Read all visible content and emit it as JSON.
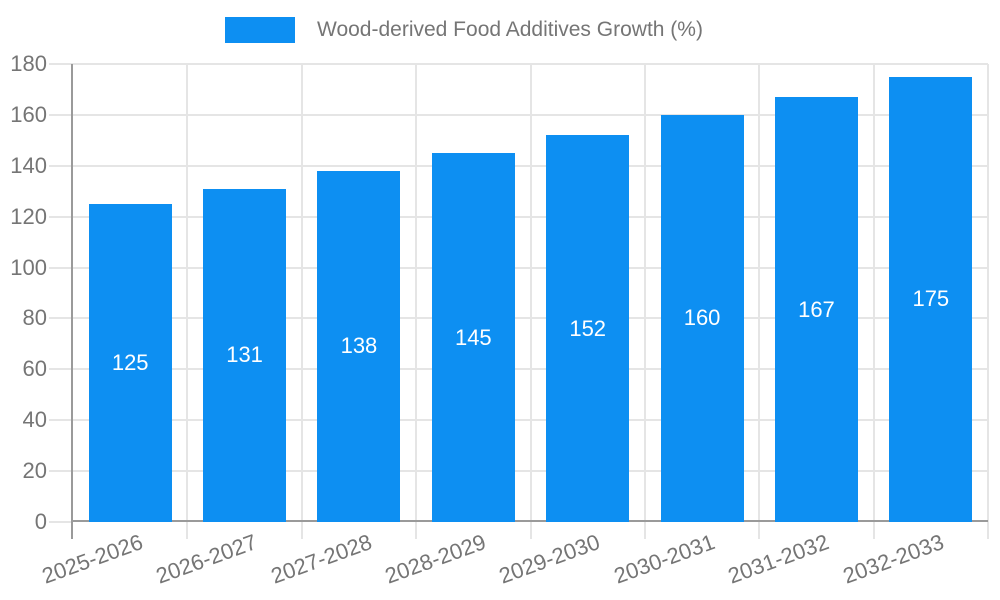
{
  "colors": {
    "bar": "#0d8ff2",
    "grid": "#e5e5e5",
    "axis": "#9a9a9a",
    "text": "#757575",
    "value_label": "#ffffff",
    "background": "#ffffff"
  },
  "chart_data": {
    "type": "bar",
    "title": "",
    "categories": [
      "2025-2026",
      "2026-2027",
      "2027-2028",
      "2028-2029",
      "2029-2030",
      "2030-2031",
      "2031-2032",
      "2032-2033"
    ],
    "series": [
      {
        "name": "Wood-derived Food Additives Growth (%)",
        "values": [
          125,
          131,
          138,
          145,
          152,
          160,
          167,
          175
        ],
        "color": "#0d8ff2"
      }
    ],
    "xlabel": "",
    "ylabel": "",
    "ylim": [
      0,
      180
    ],
    "yticks": [
      0,
      20,
      40,
      60,
      80,
      100,
      120,
      140,
      160,
      180
    ],
    "grid": true,
    "legend_position": "top-center",
    "value_labels": "inside-center",
    "x_tick_rotation_deg": -20
  }
}
